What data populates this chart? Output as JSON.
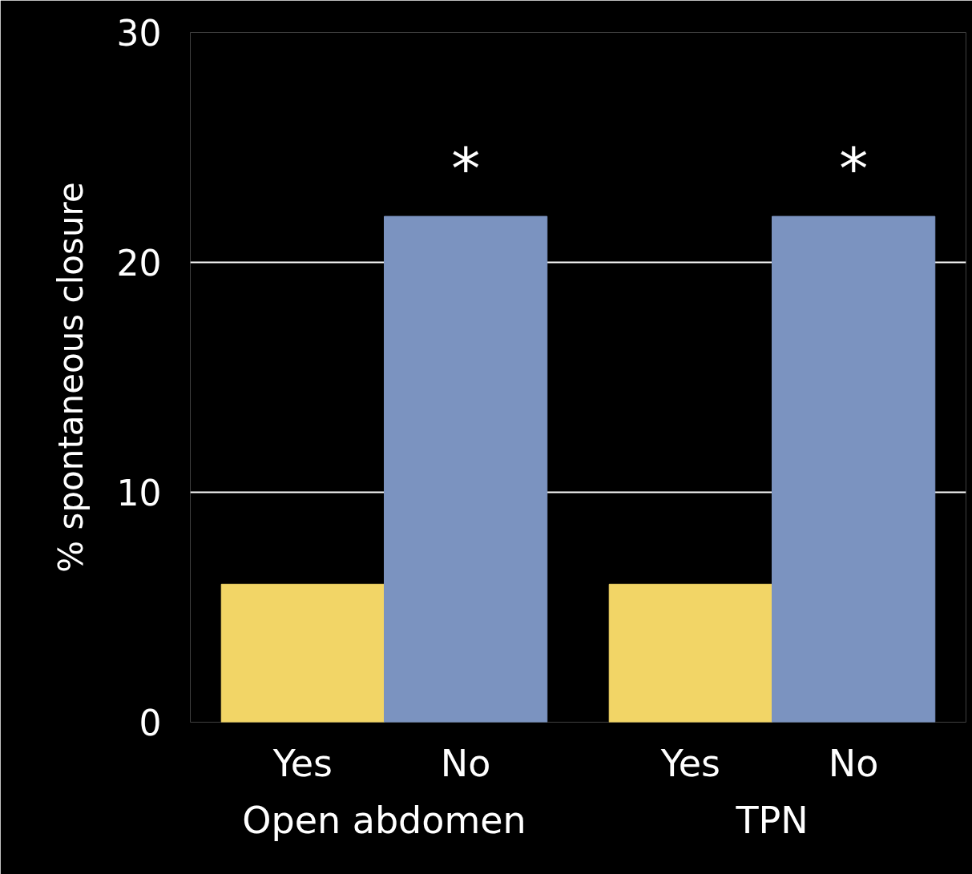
{
  "chart_data": {
    "type": "bar",
    "ylabel": "% spontaneous closure",
    "categories": [
      "Open abdomen",
      "TPN"
    ],
    "series": [
      {
        "name": "Yes",
        "color": "#f2d566",
        "values": [
          6,
          6
        ]
      },
      {
        "name": "No",
        "color": "#7b93c0",
        "values": [
          22,
          22
        ]
      }
    ],
    "ylim": [
      0,
      30
    ],
    "yticks": [
      0,
      10,
      20,
      30
    ],
    "grid": "y",
    "annotations": [
      "*",
      "*"
    ]
  }
}
